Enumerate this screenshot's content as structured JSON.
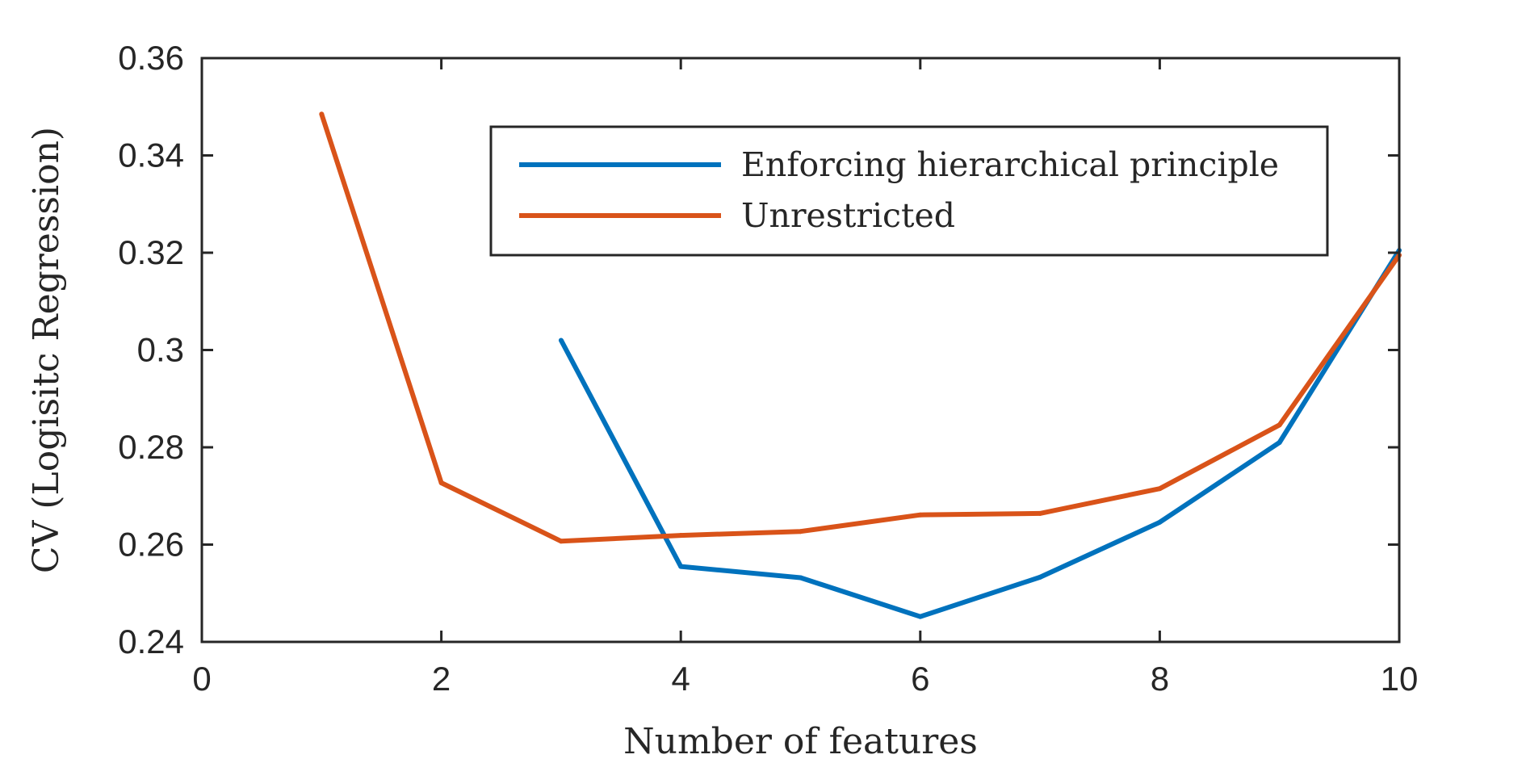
{
  "chart_data": {
    "type": "line",
    "title": "",
    "xlabel": "Number of features",
    "ylabel": "CV (Logisitc Regression)",
    "xlim": [
      0,
      10
    ],
    "ylim": [
      0.24,
      0.36
    ],
    "xticks": [
      0,
      2,
      4,
      6,
      8,
      10
    ],
    "xtick_labels": [
      "0",
      "2",
      "4",
      "6",
      "8",
      "10"
    ],
    "yticks": [
      0.24,
      0.26,
      0.28,
      0.3,
      0.32,
      0.34,
      0.36
    ],
    "ytick_labels": [
      "0.24",
      "0.26",
      "0.28",
      "0.3",
      "0.32",
      "0.34",
      "0.36"
    ],
    "grid": false,
    "legend_position": "top-right",
    "series": [
      {
        "name": "Enforcing hierarchical principle",
        "color": "#0072BD",
        "x": [
          3,
          4,
          5,
          6,
          7,
          8,
          9,
          10
        ],
        "y": [
          0.302,
          0.2555,
          0.2532,
          0.2452,
          0.2533,
          0.2646,
          0.281,
          0.3205
        ]
      },
      {
        "name": "Unrestricted",
        "color": "#D95319",
        "x": [
          1,
          2,
          3,
          4,
          5,
          6,
          7,
          8,
          9,
          10
        ],
        "y": [
          0.3485,
          0.2727,
          0.2607,
          0.2619,
          0.2627,
          0.2661,
          0.2664,
          0.2715,
          0.2846,
          0.3195
        ]
      }
    ]
  }
}
